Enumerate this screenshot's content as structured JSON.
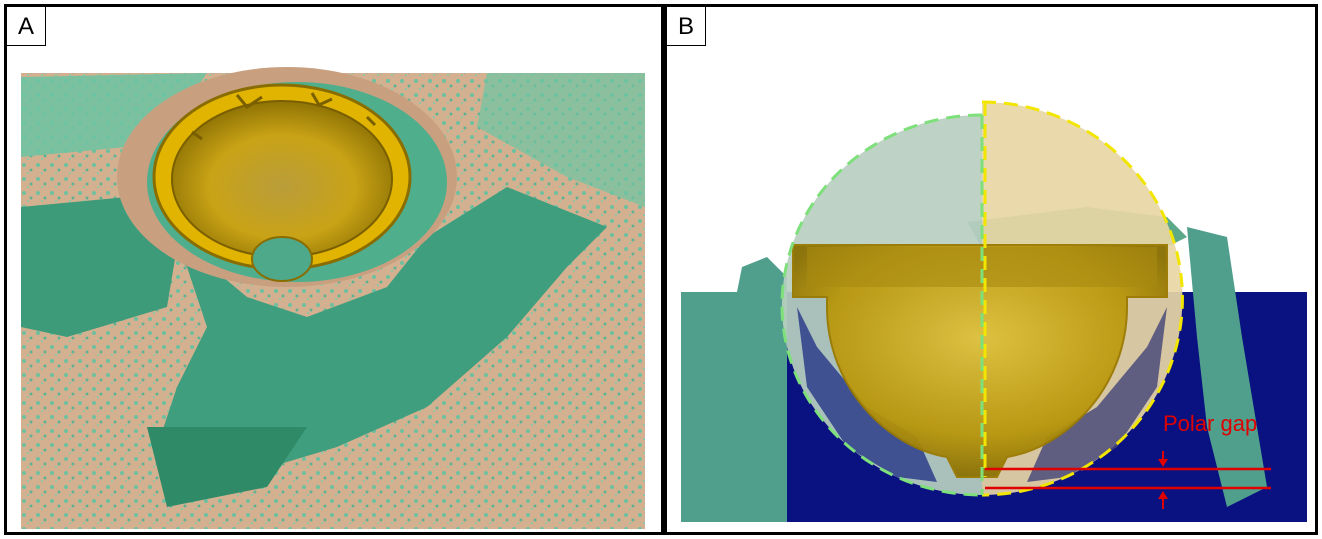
{
  "figure": {
    "panels": [
      {
        "label": "A"
      },
      {
        "label": "B",
        "annotation": "Polar gap"
      }
    ],
    "colors": {
      "bone_model": "#d2b08e",
      "scan_overlay": "#5fb395",
      "cup_implant": "#d2a800",
      "section_background": "#0a1180",
      "preop_circle": "#7ee07a",
      "implant_circle": "#f2e600",
      "annotation": "#e00000"
    }
  }
}
